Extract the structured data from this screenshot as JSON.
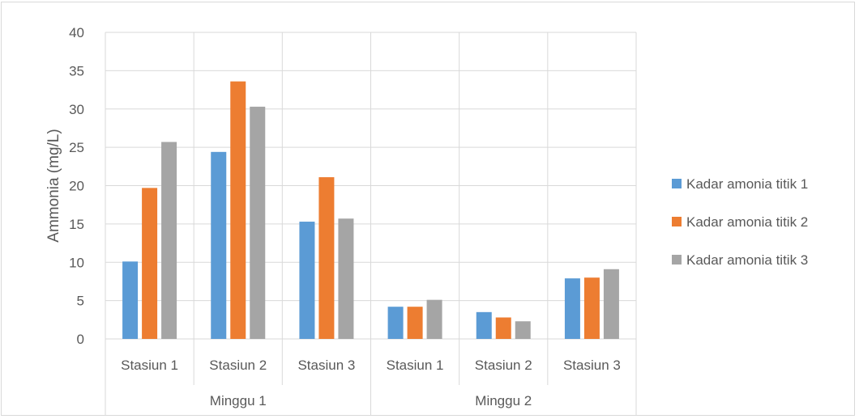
{
  "chart_data": {
    "type": "bar",
    "title": "",
    "ylabel": "Ammonia (mg/L)",
    "xlabel": "",
    "ylim": [
      0,
      40
    ],
    "yticks": [
      0,
      5,
      10,
      15,
      20,
      25,
      30,
      35,
      40
    ],
    "grid": true,
    "legend_position": "right",
    "groups": [
      {
        "label": "Minggu 1",
        "categories": [
          "Stasiun 1",
          "Stasiun 2",
          "Stasiun 3"
        ]
      },
      {
        "label": "Minggu 2",
        "categories": [
          "Stasiun 1",
          "Stasiun 2",
          "Stasiun 3"
        ]
      }
    ],
    "categories": [
      "Stasiun 1",
      "Stasiun 2",
      "Stasiun 3",
      "Stasiun 1",
      "Stasiun 2",
      "Stasiun 3"
    ],
    "series": [
      {
        "name": "Kadar amonia titik 1",
        "color": "#5b9bd5",
        "values": [
          10.1,
          24.4,
          15.3,
          4.2,
          3.5,
          7.9
        ]
      },
      {
        "name": "Kadar amonia titik 2",
        "color": "#ed7d31",
        "values": [
          19.7,
          33.6,
          21.1,
          4.2,
          2.8,
          8.0
        ]
      },
      {
        "name": "Kadar amonia titik 3",
        "color": "#a5a5a5",
        "values": [
          25.7,
          30.3,
          15.7,
          5.1,
          2.3,
          9.1
        ]
      }
    ]
  }
}
